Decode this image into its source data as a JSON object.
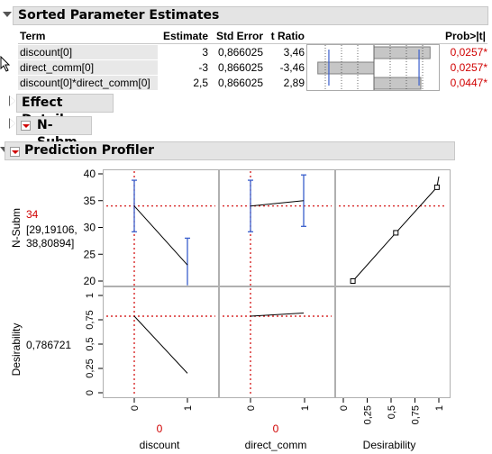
{
  "sections": {
    "sorted_title": "Sorted Parameter Estimates",
    "effect_title": "Effect Details",
    "nsubm_title": "N-Subm",
    "profiler_title": "Prediction Profiler"
  },
  "table": {
    "headers": {
      "term": "Term",
      "estimate": "Estimate",
      "stderr": "Std Error",
      "tratio": "t Ratio",
      "prob": "Prob>|t|"
    },
    "rows": [
      {
        "term": "discount[0]",
        "estimate": "3",
        "stderr": "0,866025",
        "tratio": "3,46",
        "prob": "0,0257*",
        "t": 3.46
      },
      {
        "term": "direct_comm[0]",
        "estimate": "-3",
        "stderr": "0,866025",
        "tratio": "-3,46",
        "prob": "0,0257*",
        "t": -3.46
      },
      {
        "term": "discount[0]*direct_comm[0]",
        "estimate": "2,5",
        "stderr": "0,866025",
        "tratio": "2,89",
        "prob": "0,0447*",
        "t": 2.89
      }
    ]
  },
  "profiler": {
    "y1_label": "N-Subm",
    "y1_value": "34",
    "y1_ci": [
      "[29,19106,",
      "38,80894]"
    ],
    "y2_label": "Desirability",
    "y2_value": "0,786721",
    "x_labels": [
      "discount",
      "direct_comm",
      "Desirability"
    ],
    "x_values": [
      "0",
      "0",
      ""
    ],
    "colors": {
      "accent_red": "#d00000",
      "ci_blue": "#3a5fcd"
    }
  },
  "chart_data": [
    {
      "type": "line",
      "title": "",
      "xlabel": "discount",
      "ylabel": "N-Subm",
      "x": [
        "0",
        "1"
      ],
      "series": [
        {
          "values": [
            34,
            23
          ]
        }
      ],
      "ci_low": [
        29.19,
        19
      ],
      "ci_high": [
        38.81,
        28
      ],
      "ylim": [
        19,
        40
      ],
      "yticks": [
        20,
        25,
        30,
        35,
        40
      ],
      "current": {
        "x": "0",
        "y": 34
      }
    },
    {
      "type": "line",
      "xlabel": "direct_comm",
      "ylabel": "N-Subm",
      "x": [
        "0",
        "1"
      ],
      "series": [
        {
          "values": [
            34,
            35
          ]
        }
      ],
      "ci_low": [
        29.19,
        30.2
      ],
      "ci_high": [
        38.81,
        39.8
      ],
      "ylim": [
        19,
        40
      ],
      "current": {
        "x": "0",
        "y": 34
      }
    },
    {
      "type": "line",
      "xlabel": "Desirability",
      "ylabel": "N-Subm",
      "x": [
        0.1,
        0.55,
        0.98
      ],
      "series": [
        {
          "values": [
            20,
            29,
            37.5
          ]
        }
      ],
      "xticks": [
        0,
        0.25,
        0.5,
        0.75,
        1
      ],
      "ylim": [
        19,
        40
      ],
      "current_y": 34
    },
    {
      "type": "line",
      "xlabel": "discount",
      "ylabel": "Desirability",
      "x": [
        "0",
        "1"
      ],
      "series": [
        {
          "values": [
            0.787,
            0.2
          ]
        }
      ],
      "ylim": [
        -0.05,
        1.05
      ],
      "yticks": [
        0,
        0.25,
        0.5,
        0.75,
        1
      ],
      "current": {
        "x": "0",
        "y": 0.787
      }
    },
    {
      "type": "line",
      "xlabel": "direct_comm",
      "ylabel": "Desirability",
      "x": [
        "0",
        "1"
      ],
      "series": [
        {
          "values": [
            0.787,
            0.82
          ]
        }
      ],
      "ylim": [
        -0.05,
        1.05
      ],
      "current": {
        "x": "0",
        "y": 0.787
      }
    }
  ]
}
